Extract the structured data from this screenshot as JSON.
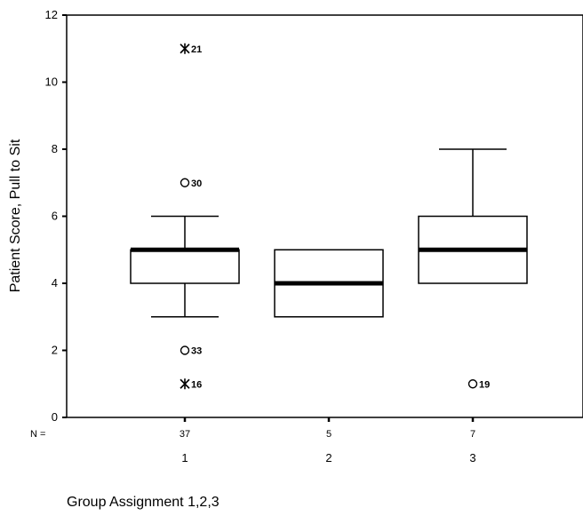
{
  "chart_data": {
    "type": "boxplot",
    "ylabel": "Patient Score, Pull to Sit",
    "xlabel": "Group Assignment 1,2,3",
    "ylim": [
      0,
      12
    ],
    "yticks": [
      0,
      2,
      4,
      6,
      8,
      10,
      12
    ],
    "n_label": "N =",
    "grid": false,
    "groups": [
      {
        "category": "1",
        "n": "37",
        "whisker_low": 3,
        "q1": 4,
        "median": 5,
        "q3": 5,
        "whisker_high": 6,
        "outliers": [
          {
            "value": 11,
            "marker": "extreme",
            "label": "21"
          },
          {
            "value": 7,
            "marker": "outlier",
            "label": "30"
          },
          {
            "value": 2,
            "marker": "outlier",
            "label": "33"
          },
          {
            "value": 1,
            "marker": "extreme",
            "label": "16"
          }
        ]
      },
      {
        "category": "2",
        "n": "5",
        "whisker_low": 3,
        "q1": 3,
        "median": 4,
        "q3": 5,
        "whisker_high": 5,
        "outliers": []
      },
      {
        "category": "3",
        "n": "7",
        "whisker_low": 4,
        "q1": 4,
        "median": 5,
        "q3": 6,
        "whisker_high": 8,
        "outliers": [
          {
            "value": 1,
            "marker": "outlier",
            "label": "19"
          }
        ]
      }
    ]
  }
}
